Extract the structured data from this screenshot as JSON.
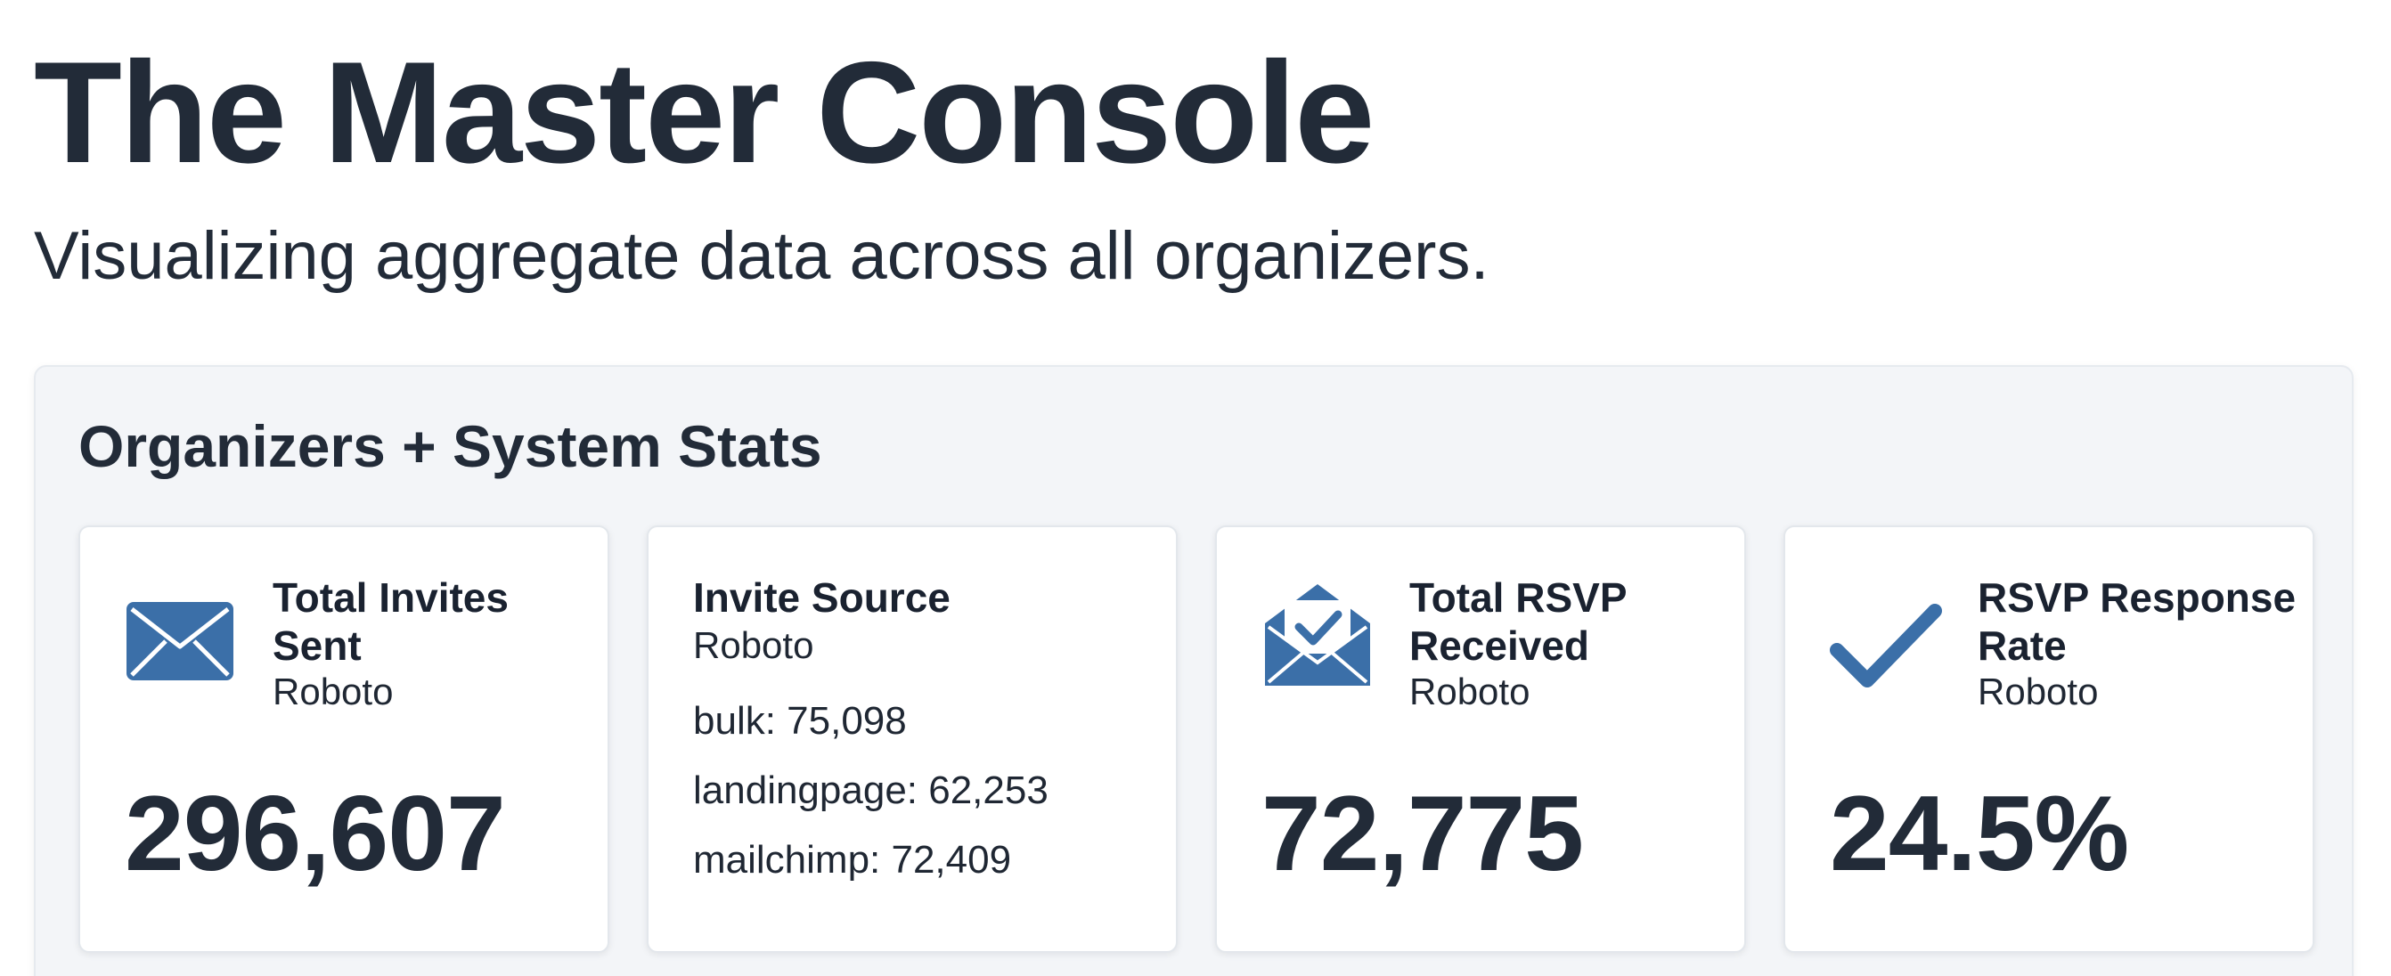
{
  "header": {
    "title": "The Master Console",
    "subtitle": "Visualizing aggregate data across all organizers."
  },
  "panel": {
    "title": "Organizers + System Stats",
    "cards": [
      {
        "icon": "mail-icon",
        "title": "Total Invites Sent",
        "sub": "Roboto",
        "value": "296,607"
      },
      {
        "title": "Invite Source",
        "sub": "Roboto",
        "sources": [
          "bulk: 75,098",
          "landingpage: 62,253",
          "mailchimp: 72,409"
        ]
      },
      {
        "icon": "mail-open-check-icon",
        "title": "Total RSVP Received",
        "sub": "Roboto",
        "value": "72,775"
      },
      {
        "icon": "checkmark-icon",
        "title": "RSVP Response Rate",
        "sub": "Roboto",
        "value": "24.5%"
      }
    ]
  },
  "colors": {
    "accent": "#3b6fa8",
    "text": "#222b38",
    "panel_bg": "#f3f5f8"
  }
}
